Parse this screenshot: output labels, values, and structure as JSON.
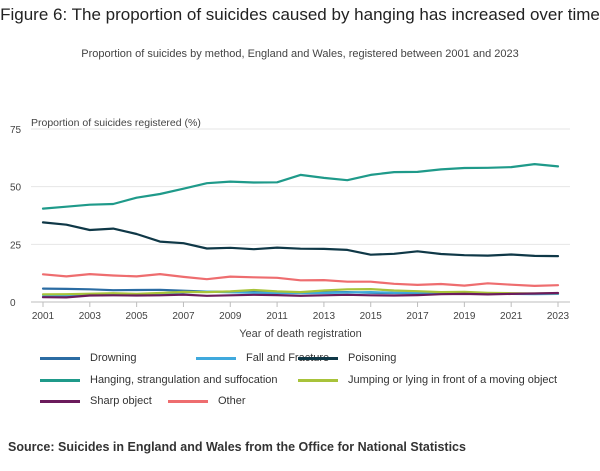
{
  "header": {
    "title": "Figure 6: The proportion of suicides caused by hanging has increased over time",
    "subtitle": "Proportion of suicides by method, England and Wales, registered between 2001 and 2023"
  },
  "footer": {
    "source": "Source: Suicides in England and Wales from the Office for National Statistics"
  },
  "chart_data": {
    "type": "line",
    "title": "Figure 6: The proportion of suicides caused by hanging has increased over time",
    "subtitle": "Proportion of suicides by method, England and Wales, registered between 2001 and 2023",
    "xlabel": "Year of death registration",
    "ylabel": "Proportion of suicides registered (%)",
    "xlim": [
      2001,
      2023
    ],
    "ylim": [
      0,
      75
    ],
    "x_ticks": [
      "2001",
      "2003",
      "2005",
      "2007",
      "2009",
      "2011",
      "2013",
      "2015",
      "2017",
      "2019",
      "2021",
      "2023"
    ],
    "y_ticks": [
      "0",
      "25",
      "50",
      "75"
    ],
    "grid": true,
    "legend_position": "bottom",
    "x": [
      2001,
      2002,
      2003,
      2004,
      2005,
      2006,
      2007,
      2008,
      2009,
      2010,
      2011,
      2012,
      2013,
      2014,
      2015,
      2016,
      2017,
      2018,
      2019,
      2020,
      2021,
      2022,
      2023
    ],
    "series": [
      {
        "name": "Drowning",
        "color": "#2b6ca3",
        "values": [
          5.8,
          5.7,
          5.5,
          5.1,
          5.2,
          5.3,
          4.9,
          4.5,
          4.4,
          4.3,
          4.1,
          4.0,
          4.2,
          4.3,
          4.0,
          3.9,
          3.8,
          3.7,
          3.6,
          3.5,
          3.6,
          3.5,
          3.5
        ]
      },
      {
        "name": "Fall and Fracture",
        "color": "#3fa9dd",
        "values": [
          2.5,
          2.8,
          3.0,
          3.2,
          3.1,
          3.3,
          4.2,
          4.5,
          4.2,
          4.0,
          3.9,
          3.8,
          3.9,
          4.1,
          4.3,
          4.0,
          4.1,
          3.8,
          3.7,
          3.6,
          3.5,
          3.4,
          3.5
        ]
      },
      {
        "name": "Poisoning",
        "color": "#0f3847",
        "values": [
          34.5,
          33.5,
          31.2,
          31.8,
          29.5,
          26.2,
          25.5,
          23.2,
          23.5,
          22.9,
          23.6,
          23.1,
          23.0,
          22.6,
          20.5,
          20.9,
          22.0,
          20.8,
          20.3,
          20.1,
          20.6,
          20.0,
          19.9
        ]
      },
      {
        "name": "Hanging, strangulation and suffocation",
        "color": "#1f9a8a",
        "values": [
          40.5,
          41.3,
          42.2,
          42.5,
          45.2,
          46.8,
          49.1,
          51.5,
          52.2,
          51.8,
          51.9,
          55.1,
          53.8,
          52.8,
          55.1,
          56.3,
          56.4,
          57.5,
          58.1,
          58.2,
          58.5,
          59.8,
          58.8
        ]
      },
      {
        "name": "Jumping or lying in front of a moving object",
        "color": "#a8c33a",
        "values": [
          3.3,
          3.4,
          3.6,
          3.8,
          3.5,
          3.9,
          4.4,
          4.3,
          4.6,
          5.2,
          4.6,
          4.3,
          5.0,
          5.5,
          5.6,
          5.0,
          4.7,
          4.3,
          4.4,
          4.0,
          3.8,
          3.7,
          3.8
        ]
      },
      {
        "name": "Sharp object",
        "color": "#6b1b5c",
        "values": [
          2.1,
          2.0,
          2.8,
          2.9,
          2.8,
          2.9,
          3.2,
          2.7,
          2.9,
          3.1,
          3.0,
          2.7,
          2.9,
          3.1,
          2.9,
          2.8,
          3.0,
          3.4,
          3.5,
          3.3,
          3.5,
          3.7,
          3.9
        ]
      },
      {
        "name": "Other",
        "color": "#ee6d6f",
        "values": [
          12.0,
          11.1,
          12.1,
          11.5,
          11.1,
          12.1,
          10.9,
          9.9,
          11.0,
          10.7,
          10.5,
          9.4,
          9.5,
          8.8,
          8.8,
          7.9,
          7.4,
          7.8,
          7.1,
          8.1,
          7.5,
          7.0,
          7.3
        ]
      }
    ]
  }
}
